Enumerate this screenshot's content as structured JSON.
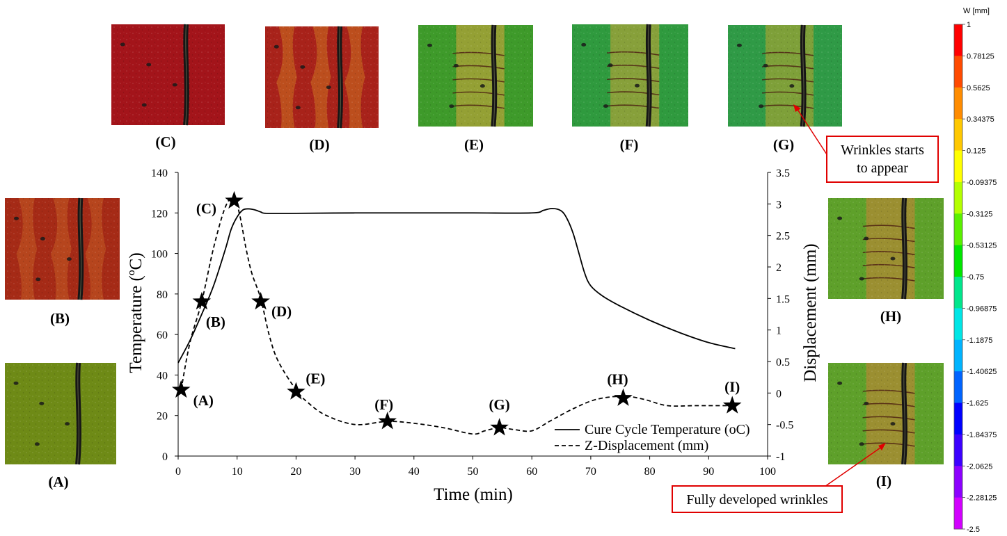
{
  "colorbar": {
    "title": "W [mm]",
    "ticks": [
      "1",
      "0.78125",
      "0.5625",
      "0.34375",
      "0.125",
      "-0.09375",
      "-0.3125",
      "-0.53125",
      "-0.75",
      "-0.96875",
      "-1.1875",
      "-1.40625",
      "-1.625",
      "-1.84375",
      "-2.0625",
      "-2.28125",
      "-2.5"
    ],
    "colors": [
      "#ff0000",
      "#ff4a00",
      "#ff8c00",
      "#ffc800",
      "#ffff00",
      "#b4ff00",
      "#5af000",
      "#00e600",
      "#00e68c",
      "#00e6e6",
      "#00b4ff",
      "#0064ff",
      "#0000ff",
      "#3c00ff",
      "#8c00ff",
      "#d200ff"
    ]
  },
  "panels": {
    "A": {
      "label": "(A)",
      "colors": [
        "#6e8a16",
        "#5f7a12"
      ]
    },
    "B": {
      "label": "(B)",
      "colors": [
        "#a52a16",
        "#b84a1e"
      ]
    },
    "C": {
      "label": "(C)",
      "colors": [
        "#a3141a",
        "#8f1015"
      ]
    },
    "D": {
      "label": "(D)",
      "colors": [
        "#a8221a",
        "#c0561e"
      ]
    },
    "E": {
      "label": "(E)",
      "colors": [
        "#3e9a2a",
        "#b2a238"
      ]
    },
    "F": {
      "label": "(F)",
      "colors": [
        "#2f9a3e",
        "#a6a23a"
      ]
    },
    "G": {
      "label": "(G)",
      "colors": [
        "#2f9a46",
        "#9aa236"
      ]
    },
    "H": {
      "label": "(H)",
      "colors": [
        "#5ea02a",
        "#b08a34"
      ]
    },
    "I": {
      "label": "(I)",
      "colors": [
        "#5ea02a",
        "#b08a34"
      ]
    }
  },
  "callouts": {
    "wrinkles_start": [
      "Wrinkles starts",
      "to appear"
    ],
    "wrinkles_full": "Fully developed wrinkles",
    "accent": "#e00000"
  },
  "chart_data": {
    "type": "line",
    "xlabel": "Time (min)",
    "ylabel_left": "Temperature (ºC)",
    "ylabel_right": "Displacement (mm)",
    "xlim": [
      0,
      100
    ],
    "ylim_left": [
      0,
      140
    ],
    "ylim_right": [
      -1,
      3.5
    ],
    "xticks": [
      0,
      10,
      20,
      30,
      40,
      50,
      60,
      70,
      80,
      90,
      100
    ],
    "yticks_left": [
      0,
      20,
      40,
      60,
      80,
      100,
      120,
      140
    ],
    "yticks_right": [
      -1,
      -0.5,
      0,
      0.5,
      1,
      1.5,
      2,
      2.5,
      3,
      3.5
    ],
    "grid": false,
    "legend_position": "bottom-right",
    "series": [
      {
        "name": "Cure Cycle Temperature (oC)",
        "axis": "left",
        "style": "solid",
        "x": [
          0,
          2,
          4,
          6,
          8,
          9,
          10,
          11,
          12,
          13,
          14,
          15,
          20,
          30,
          40,
          50,
          60,
          62,
          63.5,
          65,
          66,
          67,
          68,
          69,
          70,
          72,
          75,
          80,
          85,
          90,
          94.5
        ],
        "y": [
          46,
          57,
          70,
          84,
          102,
          112,
          118,
          121.5,
          122,
          121.5,
          120.5,
          119.8,
          119.8,
          120,
          120,
          120,
          120,
          121.3,
          122.2,
          121,
          117,
          110,
          100,
          90,
          84,
          79,
          74,
          67,
          61,
          56,
          53
        ]
      },
      {
        "name": "Z-Displacement (mm)",
        "axis": "right",
        "style": "dashed",
        "x": [
          0.5,
          2,
          4,
          6,
          8,
          9.5,
          10.5,
          11.5,
          12.5,
          14,
          15.5,
          17,
          20,
          22,
          25,
          30,
          35.5,
          40,
          45,
          50,
          52,
          54.5,
          57,
          60,
          63,
          67,
          71,
          75.5,
          79,
          83,
          88,
          94
        ],
        "y": [
          0.05,
          0.8,
          1.45,
          2.3,
          2.95,
          3.1,
          2.8,
          2.3,
          1.9,
          1.5,
          0.9,
          0.5,
          0.05,
          -0.15,
          -0.35,
          -0.5,
          -0.45,
          -0.48,
          -0.55,
          -0.65,
          -0.6,
          -0.55,
          -0.58,
          -0.6,
          -0.45,
          -0.25,
          -0.1,
          -0.05,
          -0.1,
          -0.2,
          -0.2,
          -0.2
        ]
      }
    ],
    "markers": [
      {
        "label": "(A)",
        "x": 0.5,
        "y": 0.05
      },
      {
        "label": "(B)",
        "x": 4,
        "y": 1.45
      },
      {
        "label": "(C)",
        "x": 9.5,
        "y": 3.05
      },
      {
        "label": "(D)",
        "x": 14,
        "y": 1.45
      },
      {
        "label": "(E)",
        "x": 20,
        "y": 0.02
      },
      {
        "label": "(F)",
        "x": 35.5,
        "y": -0.45
      },
      {
        "label": "(G)",
        "x": 54.5,
        "y": -0.55
      },
      {
        "label": "(H)",
        "x": 75.5,
        "y": -0.08
      },
      {
        "label": "(I)",
        "x": 94,
        "y": -0.2
      }
    ]
  }
}
